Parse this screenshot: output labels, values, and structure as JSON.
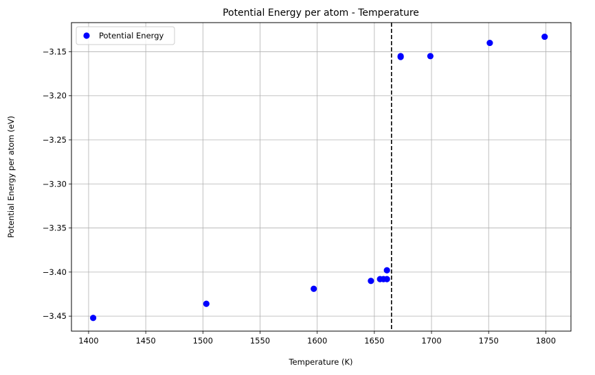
{
  "chart_data": {
    "type": "scatter",
    "title": "Potential Energy per atom - Temperature",
    "xlabel": "Temperature (K)",
    "ylabel": "Potential Energy per atom (eV)",
    "xlim": [
      1385,
      1822
    ],
    "ylim": [
      -3.467,
      -3.117
    ],
    "xticks": [
      1400,
      1450,
      1500,
      1550,
      1600,
      1650,
      1700,
      1750,
      1800
    ],
    "xtick_labels": [
      "1400",
      "1450",
      "1500",
      "1550",
      "1600",
      "1650",
      "1700",
      "1750",
      "1800"
    ],
    "yticks": [
      -3.45,
      -3.4,
      -3.35,
      -3.3,
      -3.25,
      -3.2,
      -3.15
    ],
    "ytick_labels": [
      "−3.45",
      "−3.40",
      "−3.35",
      "−3.30",
      "−3.25",
      "−3.20",
      "−3.15"
    ],
    "grid": true,
    "legend_position": "top-left",
    "series": [
      {
        "name": "Potential Energy",
        "color": "#0000ff",
        "points": [
          {
            "x": 1404,
            "y": -3.452
          },
          {
            "x": 1503,
            "y": -3.436
          },
          {
            "x": 1597,
            "y": -3.419
          },
          {
            "x": 1647,
            "y": -3.41
          },
          {
            "x": 1655,
            "y": -3.408
          },
          {
            "x": 1658,
            "y": -3.408
          },
          {
            "x": 1661,
            "y": -3.408
          },
          {
            "x": 1661,
            "y": -3.398
          },
          {
            "x": 1673,
            "y": -3.155
          },
          {
            "x": 1673,
            "y": -3.156
          },
          {
            "x": 1699,
            "y": -3.155
          },
          {
            "x": 1751,
            "y": -3.14
          },
          {
            "x": 1799,
            "y": -3.133
          }
        ]
      }
    ],
    "vline": {
      "x": 1665,
      "color": "#000000",
      "style": "dashed"
    }
  }
}
